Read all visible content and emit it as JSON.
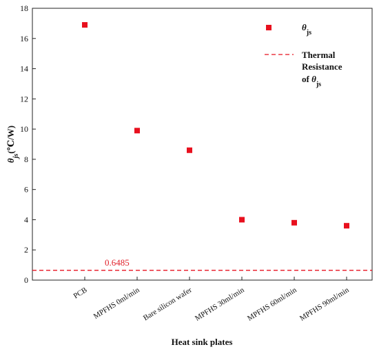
{
  "chart_data": {
    "type": "scatter",
    "title": "",
    "xlabel": "Heat sink plates",
    "ylabel_symbol": "θ",
    "ylabel_sub": "js",
    "ylabel_unit": "(℃/W)",
    "categories": [
      "PCB",
      "MPFHS 0ml/min",
      "Bare silicon wafer",
      "MPFHS 30ml/min",
      "MPFHS 60ml/min",
      "MPFHS 90ml/min"
    ],
    "series": [
      {
        "name_symbol": "θ",
        "name_sub": "js",
        "color": "#e8101e",
        "marker": "square",
        "values": [
          16.9,
          9.9,
          8.6,
          4.0,
          3.8,
          3.6
        ]
      }
    ],
    "reference_line": {
      "value": 0.6485,
      "label": "0.6485",
      "style": "dashed",
      "color": "#e8101e",
      "legend_line1": "Thermal",
      "legend_line2": "Resistance",
      "legend_line3_prefix": "of ",
      "legend_line3_symbol": "θ",
      "legend_line3_sub": "js"
    },
    "ylim": [
      0,
      18
    ],
    "yticks": [
      "0",
      "2",
      "4",
      "6",
      "8",
      "10",
      "12",
      "14",
      "16",
      "18"
    ],
    "grid": false,
    "legend_position": "top-right"
  }
}
